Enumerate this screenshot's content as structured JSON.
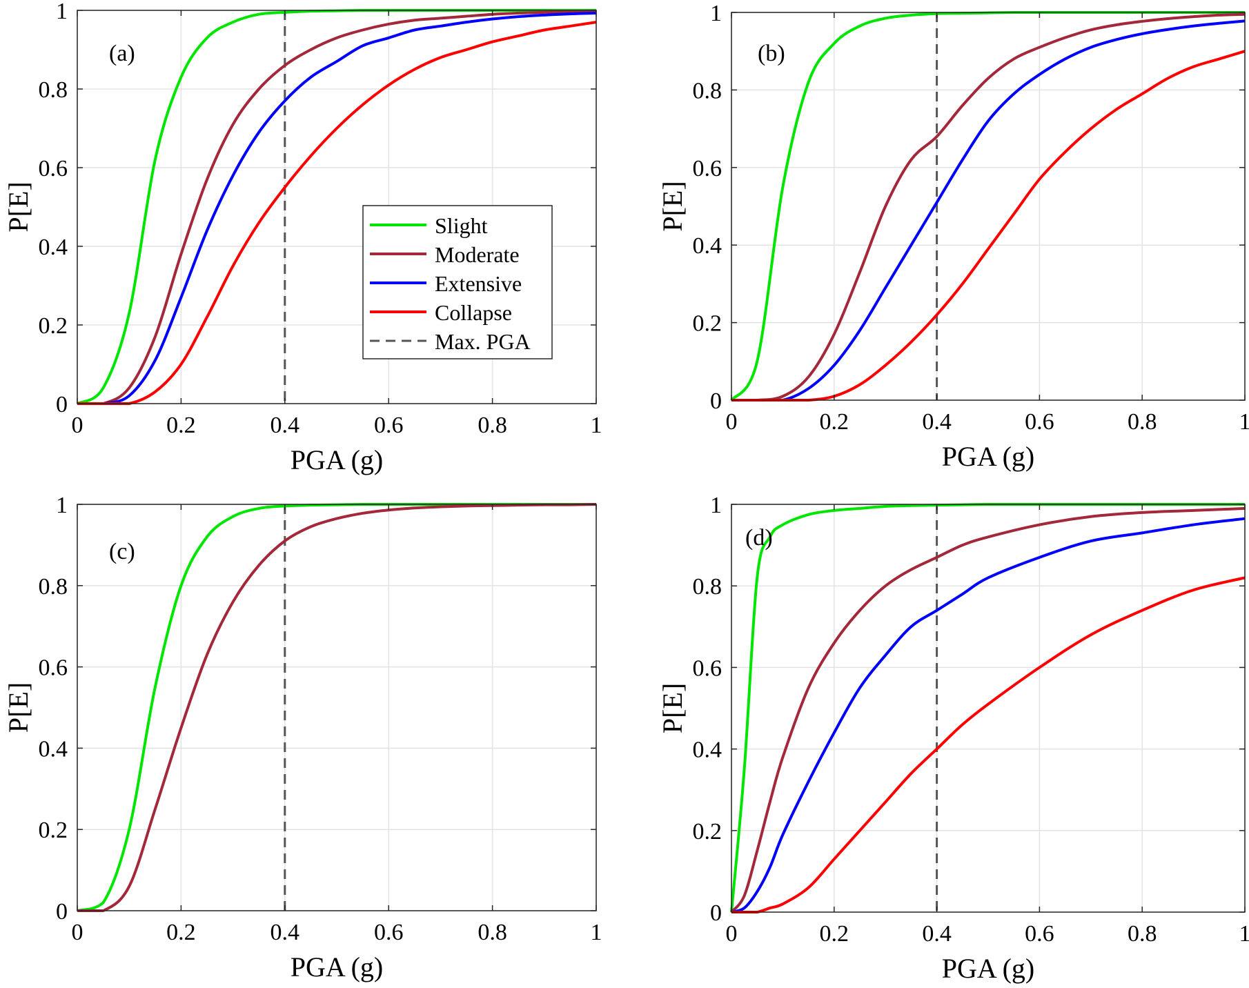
{
  "chart_data": [
    {
      "type": "line",
      "panel_label": "(a)",
      "xlabel": "PGA (g)",
      "ylabel": "P[E]",
      "xlim": [
        0,
        1
      ],
      "ylim": [
        0,
        1
      ],
      "xticks": [
        "0",
        "0.2",
        "0.4",
        "0.6",
        "0.8",
        "1"
      ],
      "yticks": [
        "0",
        "0.2",
        "0.4",
        "0.6",
        "0.8",
        "1"
      ],
      "grid": true,
      "legend": {
        "placement": "center-right",
        "entries": [
          "Slight",
          "Moderate",
          "Extensive",
          "Collapse",
          "Max. PGA"
        ]
      },
      "max_pga": 0.4,
      "x": [
        0.0,
        0.05,
        0.1,
        0.15,
        0.2,
        0.25,
        0.3,
        0.35,
        0.4,
        0.45,
        0.5,
        0.55,
        0.6,
        0.65,
        0.7,
        0.75,
        0.8,
        0.85,
        0.9,
        0.95,
        1.0
      ],
      "series": [
        {
          "name": "Slight",
          "color": "#00e600",
          "values": [
            0.0,
            0.04,
            0.23,
            0.62,
            0.83,
            0.93,
            0.97,
            0.99,
            0.995,
            0.998,
            0.999,
            1.0,
            1.0,
            1.0,
            1.0,
            1.0,
            1.0,
            1.0,
            1.0,
            1.0,
            1.0
          ]
        },
        {
          "name": "Moderate",
          "color": "#a2283a",
          "values": [
            0.0,
            0.0,
            0.04,
            0.17,
            0.38,
            0.57,
            0.71,
            0.8,
            0.86,
            0.9,
            0.93,
            0.95,
            0.965,
            0.975,
            0.98,
            0.985,
            0.99,
            0.993,
            0.995,
            0.997,
            0.998
          ]
        },
        {
          "name": "Extensive",
          "color": "#0000ff",
          "values": [
            0.0,
            0.0,
            0.02,
            0.11,
            0.27,
            0.44,
            0.58,
            0.69,
            0.77,
            0.83,
            0.87,
            0.91,
            0.93,
            0.95,
            0.96,
            0.97,
            0.978,
            0.984,
            0.988,
            0.991,
            0.993
          ]
        },
        {
          "name": "Collapse",
          "color": "#ff0000",
          "values": [
            0.0,
            0.0,
            0.0,
            0.03,
            0.1,
            0.22,
            0.35,
            0.46,
            0.55,
            0.63,
            0.7,
            0.76,
            0.81,
            0.85,
            0.88,
            0.9,
            0.92,
            0.935,
            0.95,
            0.96,
            0.97
          ]
        }
      ]
    },
    {
      "type": "line",
      "panel_label": "(b)",
      "xlabel": "PGA (g)",
      "ylabel": "P[E]",
      "xlim": [
        0,
        1
      ],
      "ylim": [
        0,
        1
      ],
      "xticks": [
        "0",
        "0.2",
        "0.4",
        "0.6",
        "0.8",
        "1"
      ],
      "yticks": [
        "0",
        "0.2",
        "0.4",
        "0.6",
        "0.8",
        "1"
      ],
      "grid": true,
      "max_pga": 0.4,
      "x": [
        0.0,
        0.05,
        0.1,
        0.15,
        0.2,
        0.25,
        0.3,
        0.35,
        0.4,
        0.45,
        0.5,
        0.55,
        0.6,
        0.65,
        0.7,
        0.75,
        0.8,
        0.85,
        0.9,
        0.95,
        1.0
      ],
      "series": [
        {
          "name": "Slight",
          "color": "#00e600",
          "values": [
            0.0,
            0.1,
            0.55,
            0.82,
            0.92,
            0.965,
            0.985,
            0.993,
            0.997,
            0.998,
            0.999,
            1.0,
            1.0,
            1.0,
            1.0,
            1.0,
            1.0,
            1.0,
            1.0,
            1.0,
            1.0
          ]
        },
        {
          "name": "Moderate",
          "color": "#a2283a",
          "values": [
            0.0,
            0.0,
            0.01,
            0.06,
            0.17,
            0.33,
            0.5,
            0.62,
            0.68,
            0.76,
            0.83,
            0.88,
            0.91,
            0.935,
            0.955,
            0.968,
            0.977,
            0.984,
            0.989,
            0.993,
            0.995
          ]
        },
        {
          "name": "Extensive",
          "color": "#0000ff",
          "values": [
            0.0,
            0.0,
            0.0,
            0.03,
            0.09,
            0.18,
            0.29,
            0.4,
            0.51,
            0.62,
            0.72,
            0.79,
            0.84,
            0.88,
            0.91,
            0.93,
            0.945,
            0.956,
            0.965,
            0.972,
            0.978
          ]
        },
        {
          "name": "Collapse",
          "color": "#ff0000",
          "values": [
            0.0,
            0.0,
            0.0,
            0.0,
            0.01,
            0.04,
            0.09,
            0.15,
            0.22,
            0.3,
            0.39,
            0.48,
            0.57,
            0.64,
            0.7,
            0.75,
            0.79,
            0.83,
            0.86,
            0.88,
            0.9
          ]
        }
      ]
    },
    {
      "type": "line",
      "panel_label": "(c)",
      "xlabel": "PGA (g)",
      "ylabel": "P[E]",
      "xlim": [
        0,
        1
      ],
      "ylim": [
        0,
        1
      ],
      "xticks": [
        "0",
        "0.2",
        "0.4",
        "0.6",
        "0.8",
        "1"
      ],
      "yticks": [
        "0",
        "0.2",
        "0.4",
        "0.6",
        "0.8",
        "1"
      ],
      "grid": true,
      "max_pga": 0.4,
      "x": [
        0.0,
        0.05,
        0.1,
        0.15,
        0.2,
        0.25,
        0.3,
        0.35,
        0.4,
        0.45,
        0.5,
        0.55,
        0.6,
        0.65,
        0.7,
        0.75,
        0.8,
        0.85,
        0.9,
        0.95,
        1.0
      ],
      "series": [
        {
          "name": "Slight",
          "color": "#00e600",
          "values": [
            0.0,
            0.02,
            0.2,
            0.55,
            0.8,
            0.92,
            0.97,
            0.99,
            0.996,
            0.998,
            0.999,
            1.0,
            1.0,
            1.0,
            1.0,
            1.0,
            1.0,
            1.0,
            1.0,
            1.0,
            1.0
          ]
        },
        {
          "name": "Moderate",
          "color": "#a2283a",
          "values": [
            0.0,
            0.0,
            0.06,
            0.25,
            0.45,
            0.63,
            0.76,
            0.85,
            0.91,
            0.945,
            0.965,
            0.978,
            0.986,
            0.991,
            0.994,
            0.996,
            0.997,
            0.998,
            0.999,
            0.999,
            1.0
          ]
        }
      ]
    },
    {
      "type": "line",
      "panel_label": "(d)",
      "xlabel": "PGA (g)",
      "ylabel": "P[E]",
      "xlim": [
        0,
        1
      ],
      "ylim": [
        0,
        1
      ],
      "xticks": [
        "0",
        "0.2",
        "0.4",
        "0.6",
        "0.8",
        "1"
      ],
      "yticks": [
        "0",
        "0.2",
        "0.4",
        "0.6",
        "0.8",
        "1"
      ],
      "grid": true,
      "max_pga": 0.4,
      "x": [
        0.0,
        0.025,
        0.05,
        0.075,
        0.1,
        0.15,
        0.2,
        0.25,
        0.3,
        0.35,
        0.4,
        0.45,
        0.5,
        0.6,
        0.7,
        0.8,
        0.9,
        1.0
      ],
      "series": [
        {
          "name": "Slight",
          "color": "#00e600",
          "values": [
            0.0,
            0.35,
            0.82,
            0.92,
            0.95,
            0.975,
            0.985,
            0.99,
            0.995,
            0.997,
            0.998,
            0.999,
            1.0,
            1.0,
            1.0,
            1.0,
            1.0,
            1.0
          ]
        },
        {
          "name": "Moderate",
          "color": "#a2283a",
          "values": [
            0.0,
            0.04,
            0.15,
            0.27,
            0.38,
            0.55,
            0.66,
            0.74,
            0.8,
            0.84,
            0.87,
            0.9,
            0.92,
            0.95,
            0.97,
            0.98,
            0.985,
            0.99
          ]
        },
        {
          "name": "Extensive",
          "color": "#0000ff",
          "values": [
            0.0,
            0.01,
            0.05,
            0.11,
            0.19,
            0.32,
            0.44,
            0.55,
            0.63,
            0.7,
            0.74,
            0.78,
            0.82,
            0.87,
            0.91,
            0.93,
            0.95,
            0.965
          ]
        },
        {
          "name": "Collapse",
          "color": "#ff0000",
          "values": [
            0.0,
            0.0,
            0.0,
            0.01,
            0.02,
            0.06,
            0.13,
            0.2,
            0.27,
            0.34,
            0.4,
            0.46,
            0.51,
            0.6,
            0.68,
            0.74,
            0.79,
            0.82
          ]
        }
      ]
    }
  ]
}
